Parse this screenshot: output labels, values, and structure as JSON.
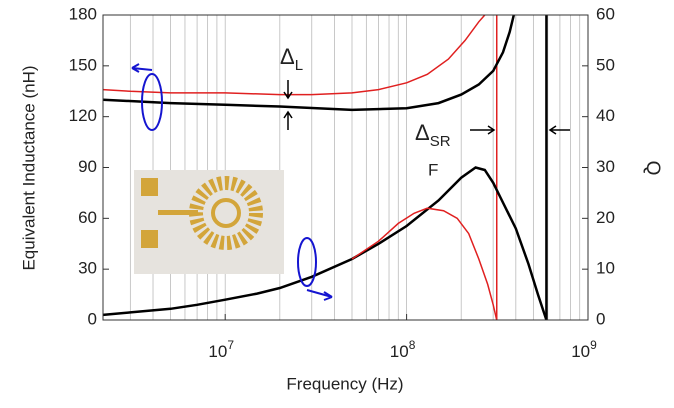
{
  "chart_data": {
    "type": "line",
    "x_label": "Frequency (Hz)",
    "y_label": "Equivalent Inductance (nH)",
    "y2_label": "Q",
    "xscale": "log",
    "xlim": [
      2120000,
      1000000000
    ],
    "xticks": [
      {
        "value": 10000000,
        "label": "10",
        "sup": "7"
      },
      {
        "value": 100000000,
        "label": "10",
        "sup": "8"
      },
      {
        "value": 1000000000,
        "label": "10",
        "sup": "9"
      }
    ],
    "xminorticks": [
      3000000,
      4000000,
      5000000,
      6000000,
      7000000,
      8000000,
      9000000,
      20000000,
      30000000,
      40000000,
      50000000,
      60000000,
      70000000,
      80000000,
      90000000,
      200000000,
      300000000,
      400000000,
      500000000,
      600000000,
      700000000,
      800000000,
      900000000
    ],
    "ylim": [
      0,
      180
    ],
    "yticks": [
      0,
      30,
      60,
      90,
      120,
      150,
      180
    ],
    "y2lim": [
      0,
      60
    ],
    "y2ticks": [
      0,
      10,
      20,
      30,
      40,
      50,
      60
    ],
    "grid": true,
    "series": [
      {
        "color": "#e02020",
        "x": [
          2120000,
          3000000,
          5000000,
          10000000,
          20000000,
          30000000,
          50000000,
          70000000,
          100000000,
          130000000,
          170000000,
          210000000,
          250000000,
          270000000
        ],
        "values": [
          136,
          135,
          134,
          134,
          133,
          133,
          134,
          136,
          140,
          145,
          154,
          165,
          176,
          180
        ]
      },
      {
        "color": "#000000",
        "x": [
          2120000,
          5000000,
          10000000,
          20000000,
          50000000,
          100000000,
          150000000,
          200000000,
          250000000,
          300000000,
          340000000,
          370000000,
          390000000
        ],
        "values": [
          130,
          128,
          127,
          126,
          124,
          125,
          128,
          133,
          139,
          147,
          158,
          170,
          180
        ]
      },
      {
        "color": "#000000",
        "axis": "y2",
        "x": [
          2120000,
          3000000,
          5000000,
          7000000,
          10000000,
          15000000,
          20000000,
          30000000,
          50000000,
          70000000,
          100000000,
          150000000,
          200000000,
          240000000,
          270000000,
          300000000,
          330000000,
          400000000,
          470000000,
          530000000,
          590000000
        ],
        "values": [
          1,
          1.5,
          2.2,
          3,
          4,
          5.2,
          6.3,
          8.5,
          12,
          15,
          18.5,
          23.5,
          28,
          30,
          29.5,
          27,
          24,
          18,
          11,
          5,
          0
        ]
      },
      {
        "color": "#e02020",
        "axis": "y2",
        "x": [
          50000000,
          70000000,
          90000000,
          110000000,
          130000000,
          160000000,
          190000000,
          220000000,
          250000000,
          280000000,
          300000000,
          314000000
        ],
        "values": [
          12,
          15.5,
          19,
          21,
          22,
          21.5,
          20,
          17,
          12,
          7,
          3,
          0
        ]
      }
    ],
    "resonance_lines": [
      {
        "x": 314000000,
        "color": "#e02020"
      },
      {
        "x": 590000000,
        "color": "#000000"
      }
    ],
    "annotations": [
      {
        "text": "Δ",
        "sub": "L"
      },
      {
        "text": "Δ",
        "sub": "SR"
      },
      {
        "text": "F"
      }
    ]
  }
}
